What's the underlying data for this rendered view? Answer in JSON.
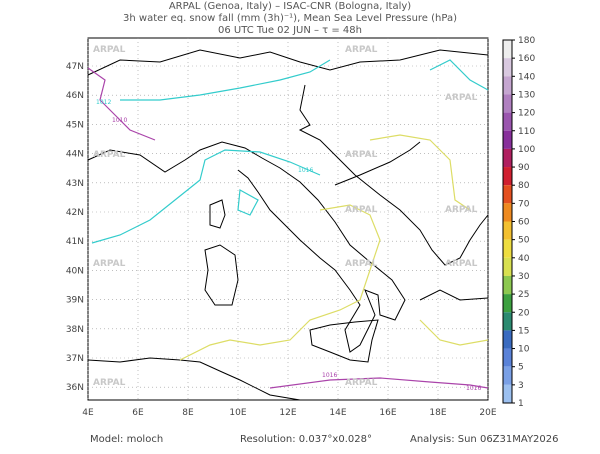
{
  "header": {
    "line1": "ARPAL (Genoa, Italy)  –  ISAC-CNR (Bologna, Italy)",
    "line2": "3h water eq. snow fall (mm (3h)⁻¹), Mean Sea Level Pressure (hPa)",
    "line3": "06 UTC Tue 02 JUN  –  τ = 48h"
  },
  "map": {
    "lat_labels": [
      "47N",
      "46N",
      "45N",
      "44N",
      "43N",
      "42N",
      "41N",
      "40N",
      "39N",
      "38N",
      "37N",
      "36N"
    ],
    "lon_labels": [
      "4E",
      "6E",
      "8E",
      "10E",
      "12E",
      "14E",
      "16E",
      "18E",
      "20E"
    ],
    "watermark": "ARPAL",
    "isobar_labels": [
      "1012",
      "1010",
      "1016",
      "1016",
      "1016"
    ]
  },
  "colorbar": {
    "levels": [
      180,
      160,
      140,
      130,
      120,
      110,
      100,
      90,
      80,
      70,
      60,
      50,
      40,
      30,
      25,
      20,
      15,
      10,
      5,
      3,
      1
    ],
    "colors": [
      "#eee",
      "#d9c9e0",
      "#c5a6d0",
      "#b080c0",
      "#9a55ae",
      "#88309b",
      "#b02060",
      "#d02030",
      "#e45020",
      "#ee8a20",
      "#f3c030",
      "#eedd40",
      "#d8e050",
      "#8cc850",
      "#3ca040",
      "#2b8a70",
      "#3a6bc0",
      "#5a82d8",
      "#7aa0e6",
      "#9cc0f0",
      "#c0dcf6"
    ]
  },
  "footer": {
    "model": "Model: moloch",
    "resolution": "Resolution: 0.037°x0.028°",
    "analysis": "Analysis: Sun 06Z31MAY2026"
  }
}
